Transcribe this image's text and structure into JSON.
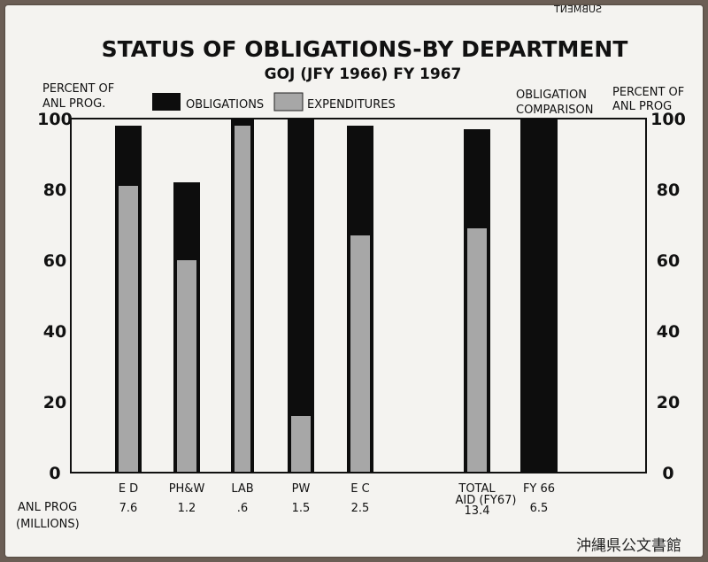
{
  "chart_data": {
    "type": "bar",
    "title": "STATUS OF OBLIGATIONS-BY DEPARTMENT",
    "subtitle": "GOJ (JFY 1966) FY 1967",
    "ylabel_left": "PERCENT OF ANL PROG.",
    "ylabel_right": "PERCENT OF ANL PROG",
    "ylim": [
      0,
      100
    ],
    "yticks": [
      0,
      20,
      40,
      60,
      80,
      100
    ],
    "legend": {
      "obligations": "OBLIGATIONS",
      "expenditures": "EXPENDITURES",
      "placement": "top"
    },
    "comparison_label": "OBLIGATION COMPARISON",
    "series": [
      {
        "name": "OBLIGATIONS",
        "color": "#0d0d0d"
      },
      {
        "name": "EXPENDITURES",
        "color": "#a7a7a7"
      }
    ],
    "categories": [
      {
        "label": "E D",
        "obligations": 98,
        "expenditures": 81,
        "anl_prog": "7.6"
      },
      {
        "label": "PH&W",
        "obligations": 82,
        "expenditures": 60,
        "anl_prog": "1.2"
      },
      {
        "label": "LAB",
        "obligations": 100,
        "expenditures": 98,
        "anl_prog": ".6"
      },
      {
        "label": "PW",
        "obligations": 100,
        "expenditures": 16,
        "anl_prog": "1.5"
      },
      {
        "label": "E C",
        "obligations": 98,
        "expenditures": 67,
        "anl_prog": "2.5"
      },
      {
        "label": "TOTAL AID (FY67)",
        "obligations": 97,
        "expenditures": 69,
        "anl_prog": "13.4"
      },
      {
        "label": "FY 66",
        "obligations": 100,
        "expenditures": null,
        "anl_prog": "6.5"
      }
    ],
    "anl_prog_label": "ANL PROG",
    "anl_prog_units": "(MILLIONS)"
  },
  "corner_text": "SUBMENT",
  "archive_mark": "沖縄県公文書館"
}
